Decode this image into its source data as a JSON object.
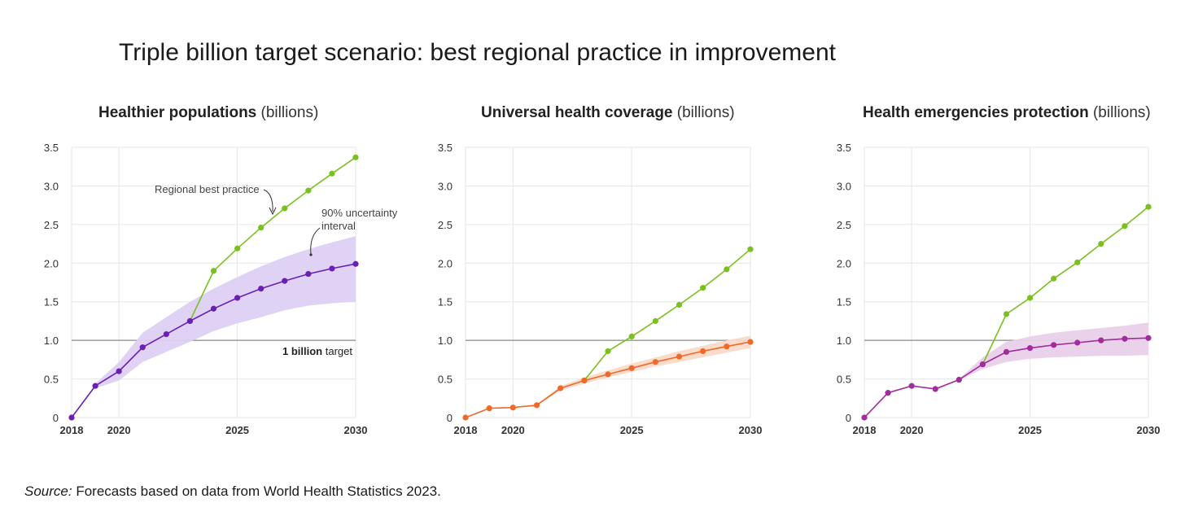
{
  "title": "Triple billion target scenario: best regional practice in improvement",
  "source": {
    "label": "Source:",
    "text": " Forecasts based on data from World Health Statistics 2023."
  },
  "colors": {
    "best_practice": "#7ac11f",
    "hp_forecast": "#6a1fb5",
    "hp_band": "#ddd0f3",
    "uhc_forecast": "#ee6a2a",
    "uhc_band": "#fbd9c9",
    "hep_forecast": "#a02c9e",
    "hep_band": "#ead0ea",
    "target_line": "#8a8a8a",
    "grid": "#e6e6e6"
  },
  "chart_data": [
    {
      "type": "line",
      "title_bold": "Healthier populations",
      "title_unit": "(billions)",
      "x_ticks": [
        "2018",
        "2020",
        "2025",
        "2030"
      ],
      "y_ticks": [
        "0",
        "0.5",
        "1.0",
        "1.5",
        "2.0",
        "2.5",
        "3.0",
        "3.5"
      ],
      "xlim": [
        2018,
        2030
      ],
      "ylim": [
        0,
        3.5
      ],
      "grid": true,
      "target": {
        "value": 1.0,
        "label_bold": "1 billion",
        "label_rest": " target"
      },
      "annotations": [
        {
          "text": "Regional best practice"
        },
        {
          "text": "90% uncertainty"
        },
        {
          "text": "interval"
        }
      ],
      "series": [
        {
          "name": "Regional best practice",
          "role": "best",
          "x": [
            2023,
            2024,
            2025,
            2026,
            2027,
            2028,
            2029,
            2030
          ],
          "values": [
            1.25,
            1.9,
            2.19,
            2.46,
            2.71,
            2.94,
            3.16,
            3.37
          ]
        },
        {
          "role": "forecast",
          "x": [
            2018,
            2019,
            2020,
            2021,
            2022,
            2023,
            2024,
            2025,
            2026,
            2027,
            2028,
            2029,
            2030
          ],
          "values": [
            0.0,
            0.41,
            0.6,
            0.91,
            1.08,
            1.25,
            1.41,
            1.55,
            1.67,
            1.77,
            1.86,
            1.93,
            1.99
          ]
        }
      ],
      "band": {
        "name": "90% uncertainty interval",
        "x": [
          2019,
          2020,
          2021,
          2022,
          2023,
          2024,
          2025,
          2026,
          2027,
          2028,
          2029,
          2030
        ],
        "lower": [
          0.38,
          0.48,
          0.72,
          0.85,
          0.98,
          1.12,
          1.22,
          1.3,
          1.39,
          1.45,
          1.48,
          1.5
        ],
        "upper": [
          0.44,
          0.72,
          1.1,
          1.3,
          1.5,
          1.67,
          1.82,
          1.96,
          2.08,
          2.18,
          2.27,
          2.35
        ]
      }
    },
    {
      "type": "line",
      "title_bold": "Universal health coverage",
      "title_unit": "(billions)",
      "x_ticks": [
        "2018",
        "2020",
        "2025",
        "2030"
      ],
      "y_ticks": [
        "0",
        "0.5",
        "1.0",
        "1.5",
        "2.0",
        "2.5",
        "3.0",
        "3.5"
      ],
      "xlim": [
        2018,
        2030
      ],
      "ylim": [
        0,
        3.5
      ],
      "grid": true,
      "target": {
        "value": 1.0
      },
      "series": [
        {
          "role": "best",
          "x": [
            2023,
            2024,
            2025,
            2026,
            2027,
            2028,
            2029,
            2030
          ],
          "values": [
            0.48,
            0.86,
            1.05,
            1.25,
            1.46,
            1.68,
            1.92,
            2.18
          ]
        },
        {
          "role": "forecast",
          "x": [
            2018,
            2019,
            2020,
            2021,
            2022,
            2023,
            2024,
            2025,
            2026,
            2027,
            2028,
            2029,
            2030
          ],
          "values": [
            0.0,
            0.12,
            0.13,
            0.16,
            0.38,
            0.48,
            0.56,
            0.64,
            0.72,
            0.79,
            0.86,
            0.92,
            0.98
          ]
        }
      ],
      "band": {
        "x": [
          2021,
          2022,
          2023,
          2024,
          2025,
          2026,
          2027,
          2028,
          2029,
          2030
        ],
        "lower": [
          0.16,
          0.35,
          0.44,
          0.52,
          0.59,
          0.66,
          0.72,
          0.78,
          0.84,
          0.9
        ],
        "upper": [
          0.17,
          0.41,
          0.52,
          0.61,
          0.7,
          0.78,
          0.86,
          0.93,
          1.0,
          1.06
        ]
      }
    },
    {
      "type": "line",
      "title_bold": "Health emergencies protection",
      "title_unit": "(billions)",
      "x_ticks": [
        "2018",
        "2020",
        "2025",
        "2030"
      ],
      "y_ticks": [
        "0",
        "0.5",
        "1.0",
        "1.5",
        "2.0",
        "2.5",
        "3.0",
        "3.5"
      ],
      "xlim": [
        2018,
        2030
      ],
      "ylim": [
        0,
        3.5
      ],
      "grid": true,
      "target": {
        "value": 1.0
      },
      "series": [
        {
          "role": "best",
          "x": [
            2023,
            2024,
            2025,
            2026,
            2027,
            2028,
            2029,
            2030
          ],
          "values": [
            0.69,
            1.34,
            1.55,
            1.8,
            2.01,
            2.25,
            2.48,
            2.73
          ]
        },
        {
          "role": "forecast",
          "x": [
            2018,
            2019,
            2020,
            2021,
            2022,
            2023,
            2024,
            2025,
            2026,
            2027,
            2028,
            2029,
            2030
          ],
          "values": [
            0.0,
            0.32,
            0.41,
            0.37,
            0.49,
            0.69,
            0.85,
            0.9,
            0.94,
            0.97,
            1.0,
            1.02,
            1.03
          ]
        }
      ],
      "band": {
        "x": [
          2022,
          2023,
          2024,
          2025,
          2026,
          2027,
          2028,
          2029,
          2030
        ],
        "lower": [
          0.48,
          0.63,
          0.72,
          0.76,
          0.78,
          0.79,
          0.8,
          0.8,
          0.81
        ],
        "upper": [
          0.5,
          0.78,
          0.98,
          1.05,
          1.1,
          1.13,
          1.16,
          1.19,
          1.23
        ]
      }
    }
  ]
}
